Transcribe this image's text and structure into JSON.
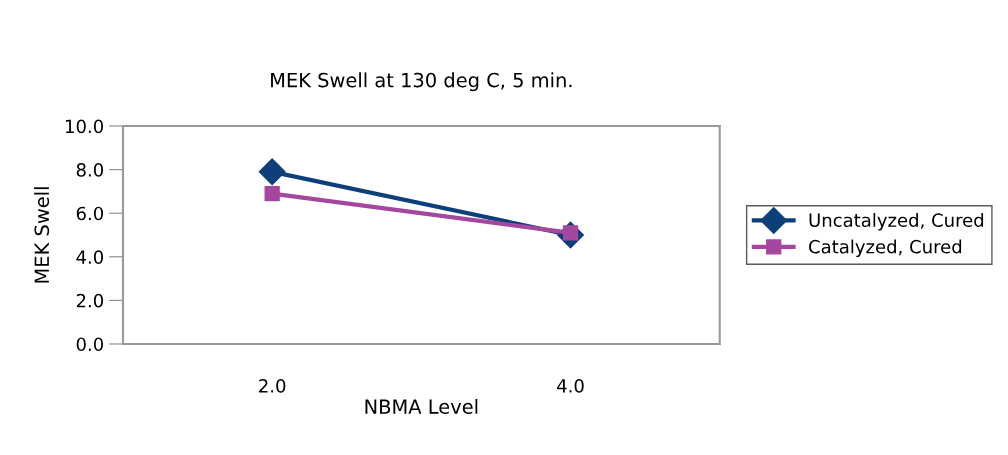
{
  "chart_data": {
    "type": "line",
    "title": "MEK Swell at 130 deg C, 5 min.",
    "xlabel": "NBMA Level",
    "ylabel": "MEK Swell",
    "categories": [
      "2.0",
      "4.0"
    ],
    "series": [
      {
        "name": "Uncatalyzed, Cured",
        "color": "#0d3f7a",
        "marker": "diamond",
        "values": [
          7.9,
          5.0
        ]
      },
      {
        "name": "Catalyzed, Cured",
        "color": "#a6479f",
        "marker": "square",
        "values": [
          6.9,
          5.1
        ]
      }
    ],
    "ylim": [
      0,
      10
    ],
    "yticks": [
      {
        "value": 0,
        "label": "0.0"
      },
      {
        "value": 2,
        "label": "2.0"
      },
      {
        "value": 4,
        "label": "4.0"
      },
      {
        "value": 6,
        "label": "6.0"
      },
      {
        "value": 8,
        "label": "8.0"
      },
      {
        "value": 10,
        "label": "10.0"
      }
    ],
    "grid": false,
    "legend": "right",
    "line_style": "solid"
  }
}
